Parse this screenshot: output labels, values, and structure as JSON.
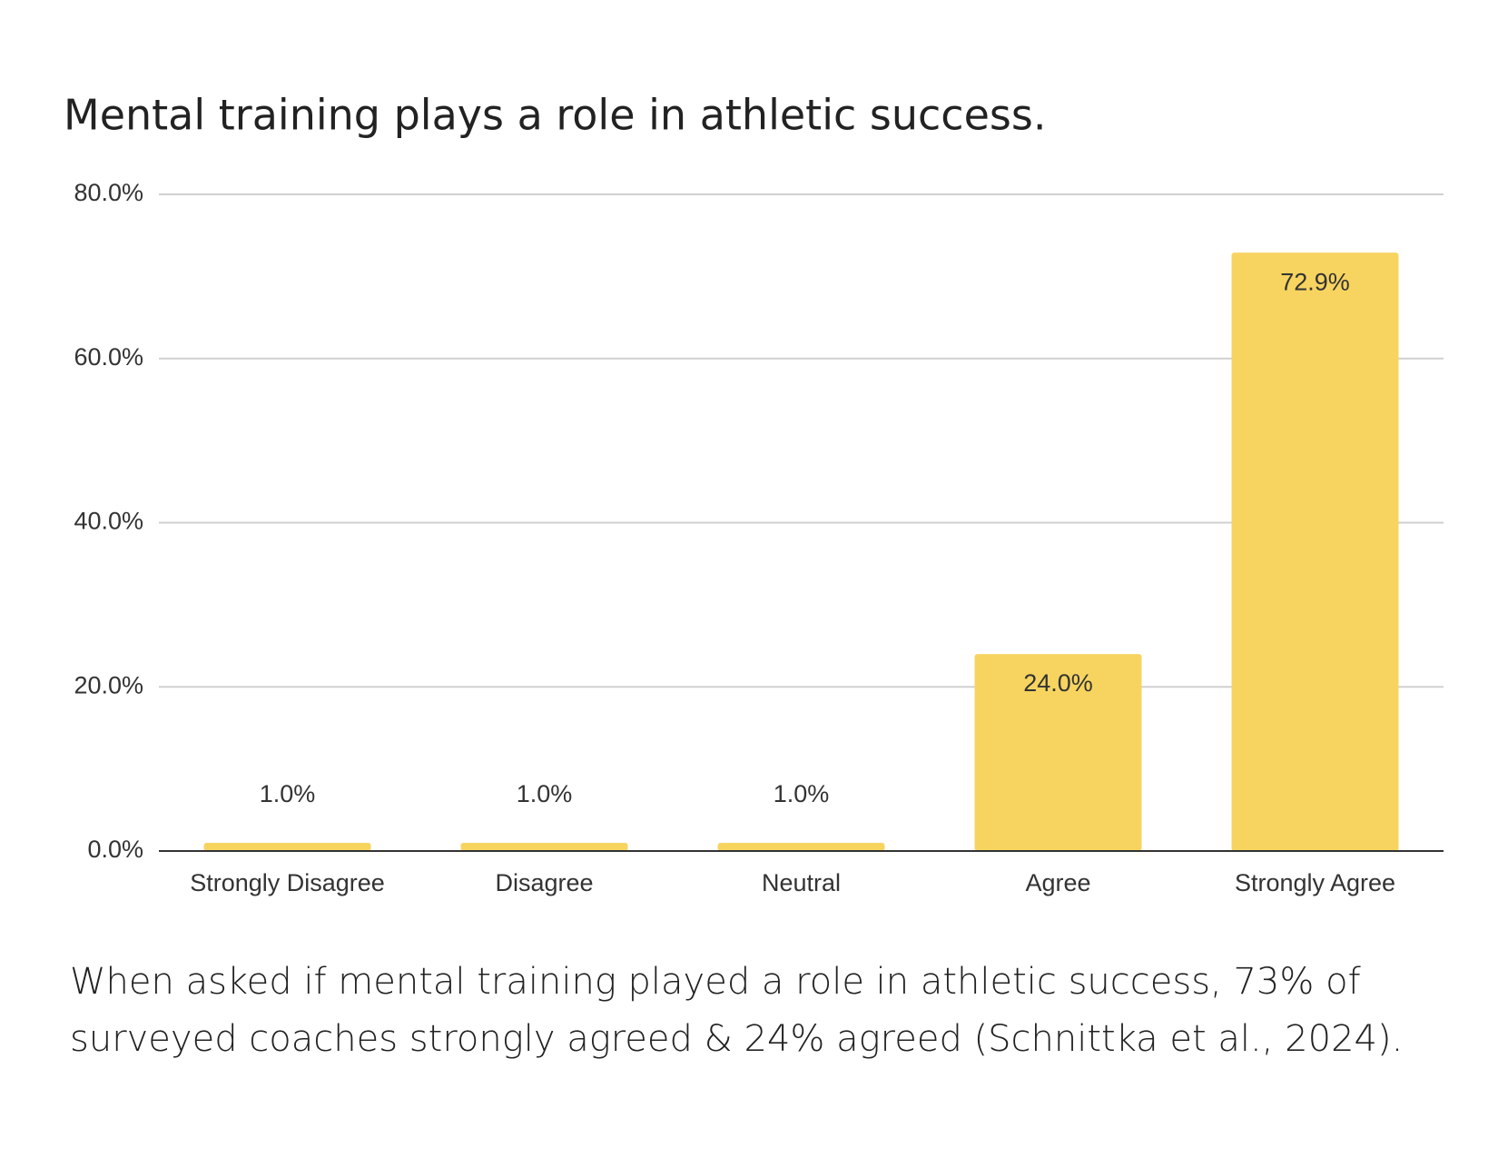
{
  "chart_data": {
    "type": "bar",
    "title": "Mental training plays a role in athletic success.",
    "categories": [
      "Strongly Disagree",
      "Disagree",
      "Neutral",
      "Agree",
      "Strongly Agree"
    ],
    "values": [
      1.0,
      1.0,
      1.0,
      24.0,
      72.9
    ],
    "value_labels": [
      "1.0%",
      "1.0%",
      "1.0%",
      "24.0%",
      "72.9%"
    ],
    "color": "#f7d460",
    "ylim": [
      0,
      80
    ],
    "yticks": [
      {
        "value": 0,
        "label": "0.0%"
      },
      {
        "value": 20,
        "label": "20.0%"
      },
      {
        "value": 40,
        "label": "40.0%"
      },
      {
        "value": 60,
        "label": "60.0%"
      },
      {
        "value": 80,
        "label": "80.0%"
      }
    ],
    "grid": true,
    "caption": [
      "When asked if mental training played a role in athletic success, 73% of",
      "surveyed coaches strongly agreed & 24% agreed (Schnittka et al., 2024)."
    ]
  }
}
